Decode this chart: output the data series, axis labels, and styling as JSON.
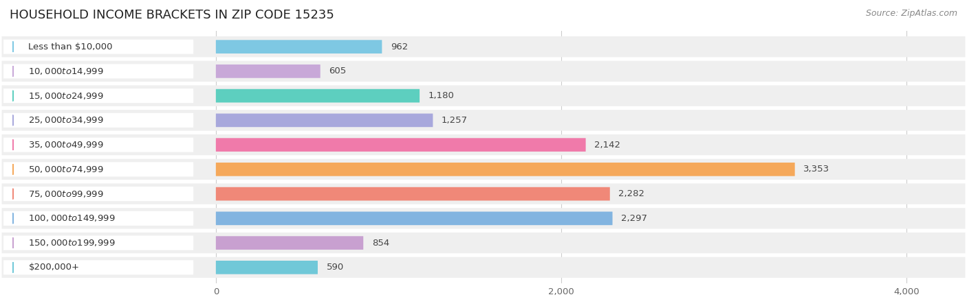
{
  "title": "HOUSEHOLD INCOME BRACKETS IN ZIP CODE 15235",
  "source": "Source: ZipAtlas.com",
  "categories": [
    "Less than $10,000",
    "$10,000 to $14,999",
    "$15,000 to $24,999",
    "$25,000 to $34,999",
    "$35,000 to $49,999",
    "$50,000 to $74,999",
    "$75,000 to $99,999",
    "$100,000 to $149,999",
    "$150,000 to $199,999",
    "$200,000+"
  ],
  "values": [
    962,
    605,
    1180,
    1257,
    2142,
    3353,
    2282,
    2297,
    854,
    590
  ],
  "bar_colors": [
    "#7EC8E3",
    "#C8A8D8",
    "#5DCFBF",
    "#A8A8DC",
    "#F07AAA",
    "#F5A85A",
    "#F08878",
    "#82B4E0",
    "#C8A0D0",
    "#70C8D8"
  ],
  "value_labels": [
    "962",
    "605",
    "1,180",
    "1,257",
    "2,142",
    "3,353",
    "2,282",
    "2,297",
    "854",
    "590"
  ],
  "xlim": [
    0,
    4000
  ],
  "xticks": [
    0,
    2000,
    4000
  ],
  "background_color": "#ffffff",
  "row_bg_color": "#efefef",
  "label_pill_color": "#ffffff",
  "title_fontsize": 13,
  "label_fontsize": 9.5,
  "value_fontsize": 9.5,
  "source_fontsize": 9
}
